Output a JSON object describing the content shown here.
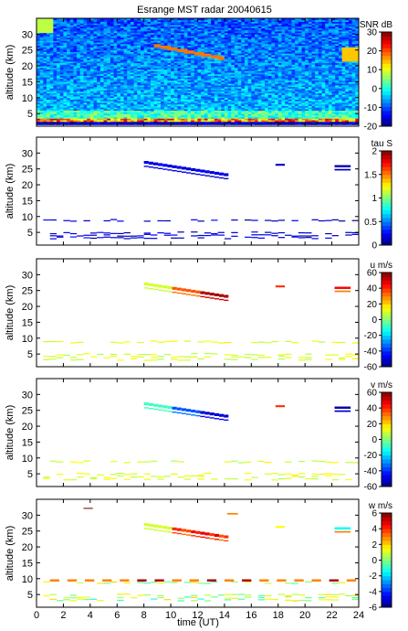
{
  "title": "Esrange MST radar 20040615",
  "chart_data": {
    "type": "heatmap",
    "title": "Esrange MST radar 20040615",
    "xlabel": "time (UT)",
    "xlim": [
      0,
      24
    ],
    "xticks": [
      0,
      2,
      4,
      6,
      8,
      10,
      12,
      14,
      16,
      18,
      20,
      22,
      24
    ],
    "panels": [
      {
        "id": "snr",
        "ylabel": "altitude (km)",
        "ylim": [
          1,
          35
        ],
        "yticks": [
          5,
          10,
          15,
          20,
          25,
          30
        ],
        "colorbar_label": "SNR dB",
        "clim": [
          -20,
          30
        ],
        "cticks": [
          -20,
          -10,
          0,
          10,
          20,
          30
        ],
        "kind": "snr"
      },
      {
        "id": "tau",
        "ylabel": "altitude (km)",
        "ylim": [
          1,
          35
        ],
        "yticks": [
          5,
          10,
          15,
          20,
          25,
          30
        ],
        "colorbar_label": "tau S",
        "clim": [
          0,
          2
        ],
        "cticks": [
          0,
          0.5,
          1,
          1.5,
          2
        ],
        "kind": "tau"
      },
      {
        "id": "u",
        "ylabel": "altitude (km)",
        "ylim": [
          1,
          35
        ],
        "yticks": [
          5,
          10,
          15,
          20,
          25,
          30
        ],
        "colorbar_label": "u m/s",
        "clim": [
          -60,
          60
        ],
        "cticks": [
          -60,
          -40,
          -20,
          0,
          20,
          40,
          60
        ],
        "kind": "u"
      },
      {
        "id": "v",
        "ylabel": "altitude (km)",
        "ylim": [
          1,
          35
        ],
        "yticks": [
          5,
          10,
          15,
          20,
          25,
          30
        ],
        "colorbar_label": "v m/s",
        "clim": [
          -60,
          60
        ],
        "cticks": [
          -60,
          -40,
          -20,
          0,
          20,
          40,
          60
        ],
        "kind": "v"
      },
      {
        "id": "w",
        "ylabel": "altitude (km)",
        "ylim": [
          1,
          35
        ],
        "yticks": [
          5,
          10,
          15,
          20,
          25,
          30
        ],
        "colorbar_label": "w m/s",
        "clim": [
          -6,
          6
        ],
        "cticks": [
          -6,
          -4,
          -2,
          0,
          2,
          4,
          6
        ],
        "kind": "w"
      }
    ]
  }
}
